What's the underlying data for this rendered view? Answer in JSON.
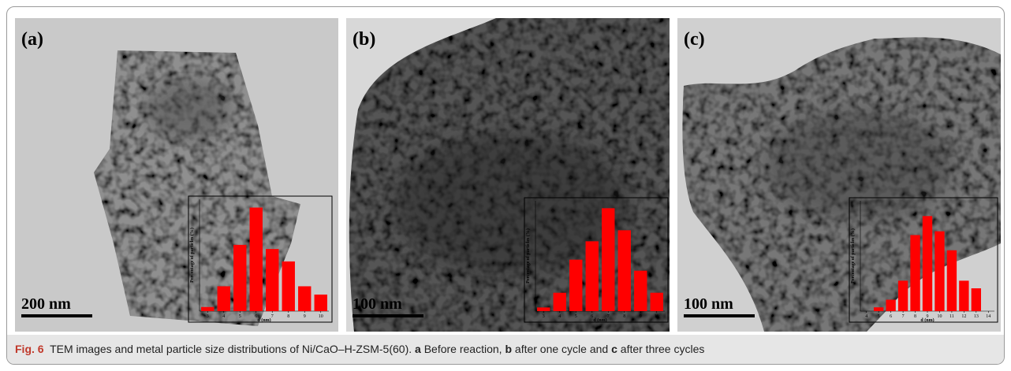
{
  "panels": [
    {
      "label": "(a)",
      "scale_bar": "200 nm"
    },
    {
      "label": "(b)",
      "scale_bar": "100 nm"
    },
    {
      "label": "(c)",
      "scale_bar": "100 nm"
    }
  ],
  "chart_data": [
    {
      "type": "bar",
      "x_label": "d (nm)",
      "y_label": "Percentage of particles (%)",
      "color": "#ff0000",
      "x": [
        3,
        4,
        5,
        6,
        7,
        8,
        9,
        10
      ],
      "values": [
        1,
        6,
        16,
        25,
        15,
        12,
        6,
        4
      ],
      "xlim": [
        2.5,
        10.5
      ],
      "xticks": [
        3,
        4,
        5,
        6,
        7,
        8,
        9,
        10
      ],
      "ylim": [
        0,
        27
      ]
    },
    {
      "type": "bar",
      "x_label": "d (nm)",
      "y_label": "Percentage of particles (%)",
      "color": "#ff0000",
      "x": [
        3,
        4,
        5,
        6,
        7,
        8,
        9,
        10
      ],
      "values": [
        1,
        5,
        14,
        19,
        28,
        22,
        11,
        5
      ],
      "xlim": [
        2.5,
        10.5
      ],
      "xticks": [
        3,
        4,
        5,
        6,
        7,
        8,
        9,
        10
      ],
      "ylim": [
        0,
        30
      ]
    },
    {
      "type": "bar",
      "x_label": "d (nm)",
      "y_label": "Percentage of particles (%)",
      "color": "#ff0000",
      "x": [
        5,
        6,
        7,
        8,
        9,
        10,
        11,
        12,
        13
      ],
      "values": [
        1,
        3,
        8,
        20,
        25,
        21,
        16,
        8,
        6
      ],
      "xlim": [
        3.5,
        14.5
      ],
      "xticks": [
        4,
        5,
        6,
        7,
        8,
        9,
        10,
        11,
        12,
        13,
        14
      ],
      "ylim": [
        0,
        29
      ]
    }
  ],
  "caption": {
    "figure": "Fig. 6",
    "text": "TEM images and metal particle size distributions of Ni/CaO–H-ZSM-5(60).",
    "a": "a",
    "a_text": "Before reaction,",
    "b": "b",
    "b_text": "after one cycle and",
    "c": "c",
    "c_text": "after three cycles"
  }
}
